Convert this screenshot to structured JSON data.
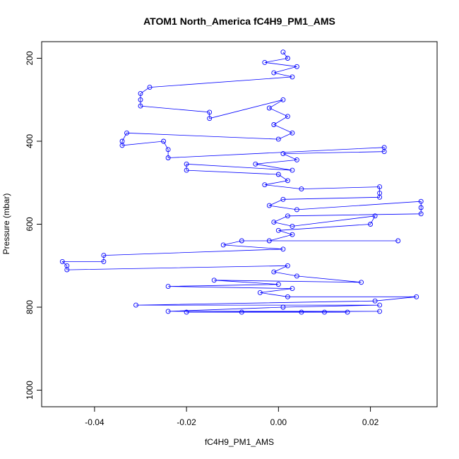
{
  "chart_data": {
    "type": "scatter",
    "title": "ATOM1 North_America fC4H9_PM1_AMS",
    "xlabel": "fC4H9_PM1_AMS",
    "ylabel": "Pressure (mbar)",
    "xlim": [
      -0.0515,
      0.0345
    ],
    "ylim": [
      1040,
      160
    ],
    "y_reversed": true,
    "x_ticks": [
      -0.04,
      -0.02,
      0.0,
      0.02
    ],
    "x_tick_labels": [
      "-0.04",
      "-0.02",
      "0.00",
      "0.02"
    ],
    "y_ticks": [
      200,
      400,
      600,
      800,
      1000
    ],
    "y_tick_labels": [
      "200",
      "400",
      "600",
      "800",
      "1000"
    ],
    "grid": false,
    "legend": "none",
    "marker": "open-circle",
    "connected": true,
    "series": [
      {
        "color": "#0000ff",
        "points": [
          [
            0.001,
            185
          ],
          [
            0.002,
            200
          ],
          [
            -0.003,
            210
          ],
          [
            0.004,
            220
          ],
          [
            -0.001,
            235
          ],
          [
            0.003,
            245
          ],
          [
            -0.028,
            270
          ],
          [
            -0.03,
            285
          ],
          [
            -0.03,
            300
          ],
          [
            -0.03,
            315
          ],
          [
            -0.015,
            330
          ],
          [
            -0.015,
            345
          ],
          [
            0.001,
            300
          ],
          [
            -0.002,
            320
          ],
          [
            0.002,
            340
          ],
          [
            -0.001,
            360
          ],
          [
            0.003,
            380
          ],
          [
            0.0,
            395
          ],
          [
            -0.033,
            380
          ],
          [
            -0.034,
            400
          ],
          [
            -0.034,
            410
          ],
          [
            -0.025,
            400
          ],
          [
            -0.024,
            420
          ],
          [
            -0.024,
            440
          ],
          [
            0.023,
            415
          ],
          [
            0.023,
            425
          ],
          [
            0.001,
            430
          ],
          [
            0.004,
            445
          ],
          [
            -0.005,
            455
          ],
          [
            0.003,
            470
          ],
          [
            -0.02,
            455
          ],
          [
            -0.02,
            470
          ],
          [
            0.0,
            480
          ],
          [
            0.002,
            495
          ],
          [
            -0.003,
            505
          ],
          [
            0.005,
            515
          ],
          [
            0.022,
            510
          ],
          [
            0.022,
            525
          ],
          [
            0.022,
            535
          ],
          [
            0.001,
            540
          ],
          [
            -0.002,
            555
          ],
          [
            0.004,
            565
          ],
          [
            0.031,
            545
          ],
          [
            0.031,
            560
          ],
          [
            0.031,
            575
          ],
          [
            0.002,
            580
          ],
          [
            -0.001,
            595
          ],
          [
            0.003,
            605
          ],
          [
            0.021,
            580
          ],
          [
            0.02,
            600
          ],
          [
            0.0,
            615
          ],
          [
            0.003,
            625
          ],
          [
            -0.002,
            640
          ],
          [
            0.026,
            640
          ],
          [
            -0.008,
            640
          ],
          [
            -0.012,
            650
          ],
          [
            0.001,
            660
          ],
          [
            -0.038,
            675
          ],
          [
            -0.038,
            690
          ],
          [
            -0.047,
            690
          ],
          [
            -0.046,
            700
          ],
          [
            -0.046,
            710
          ],
          [
            0.002,
            700
          ],
          [
            -0.001,
            715
          ],
          [
            0.004,
            725
          ],
          [
            0.018,
            740
          ],
          [
            -0.014,
            735
          ],
          [
            0.0,
            745
          ],
          [
            -0.024,
            750
          ],
          [
            0.003,
            755
          ],
          [
            -0.004,
            765
          ],
          [
            0.002,
            775
          ],
          [
            0.03,
            775
          ],
          [
            0.021,
            785
          ],
          [
            -0.031,
            795
          ],
          [
            0.022,
            795
          ],
          [
            0.001,
            800
          ],
          [
            -0.024,
            810
          ],
          [
            0.022,
            810
          ],
          [
            -0.02,
            812
          ],
          [
            0.005,
            812
          ],
          [
            0.01,
            812
          ],
          [
            0.015,
            812
          ],
          [
            -0.008,
            812
          ]
        ]
      }
    ]
  }
}
